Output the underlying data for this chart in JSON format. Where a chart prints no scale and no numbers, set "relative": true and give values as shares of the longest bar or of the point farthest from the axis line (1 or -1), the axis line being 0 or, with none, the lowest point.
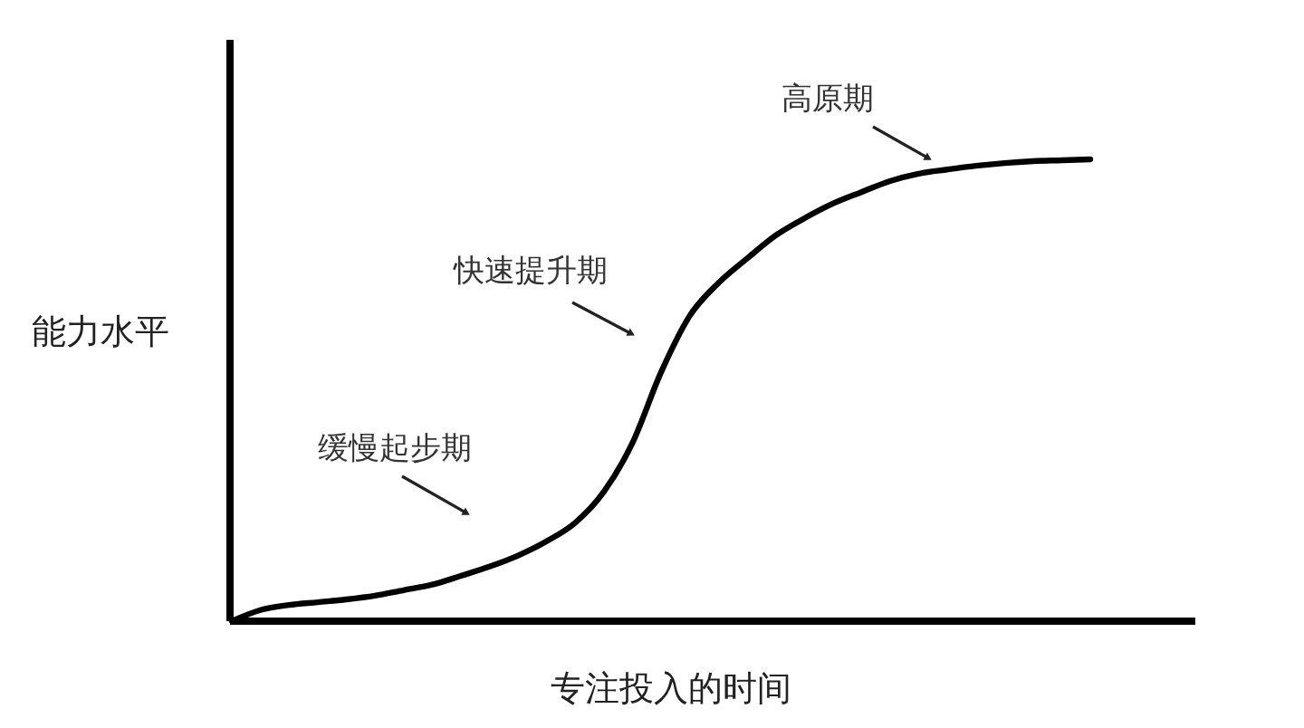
{
  "chart_data": {
    "type": "line",
    "relative": true,
    "xlabel": "专注投入的时间",
    "ylabel": "能力水平",
    "categories": [
      null,
      null,
      null,
      null,
      null,
      null,
      null,
      null,
      null,
      null,
      null,
      null,
      null,
      null,
      null,
      null,
      null,
      null,
      null,
      null,
      null,
      null,
      null,
      null,
      null,
      null,
      null,
      null,
      null,
      null,
      null
    ],
    "values": [
      0,
      0.024,
      0.035,
      0.041,
      0.047,
      0.055,
      0.067,
      0.079,
      0.098,
      0.118,
      0.142,
      0.173,
      0.213,
      0.28,
      0.386,
      0.539,
      0.661,
      0.732,
      0.785,
      0.835,
      0.872,
      0.904,
      0.929,
      0.953,
      0.969,
      0.978,
      0.986,
      0.992,
      0.996,
      0.998,
      1
    ],
    "color": "#000000",
    "line_style": "solid",
    "annotations": [
      "缓慢起步期",
      "快速提升期",
      "高原期"
    ]
  }
}
